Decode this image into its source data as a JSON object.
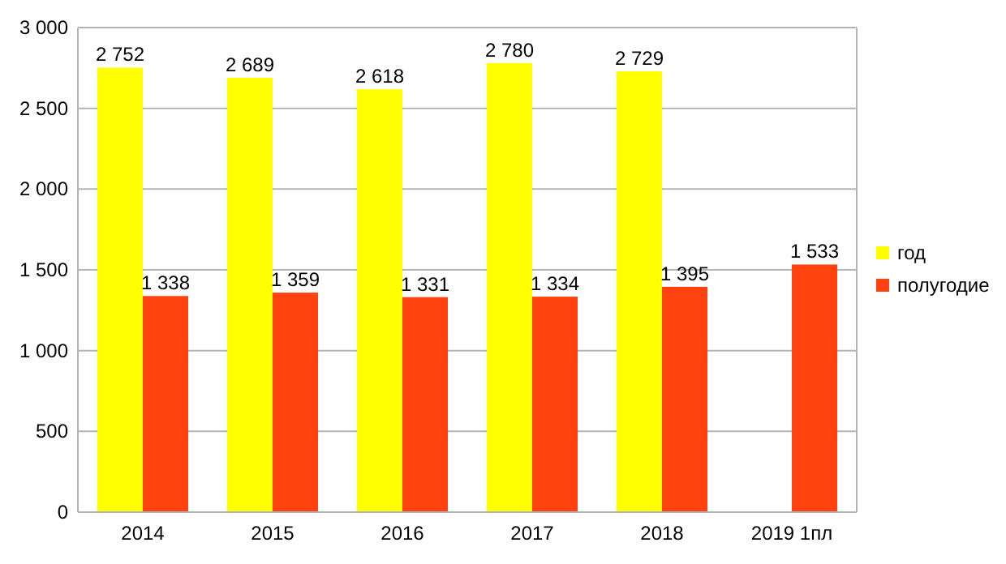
{
  "chart_data": {
    "type": "bar",
    "categories": [
      "2014",
      "2015",
      "2016",
      "2017",
      "2018",
      "2019 1пл"
    ],
    "series": [
      {
        "name": "год",
        "color": "#ffff00",
        "values": [
          2752,
          2689,
          2618,
          2780,
          2729,
          null
        ],
        "value_labels": [
          "2 752",
          "2 689",
          "2 618",
          "2 780",
          "2 729",
          null
        ]
      },
      {
        "name": "полугодие",
        "color": "#ff420e",
        "values": [
          1338,
          1359,
          1331,
          1334,
          1395,
          1533
        ],
        "value_labels": [
          "1 338",
          "1 359",
          "1 331",
          "1 334",
          "1 395",
          "1 533"
        ]
      }
    ],
    "ylim": [
      0,
      3000
    ],
    "yticks": [
      0,
      500,
      {
        "value": 1000,
        "label": "1 000"
      },
      {
        "value": 1500,
        "label": "1 500"
      },
      {
        "value": 2000,
        "label": "2 000"
      },
      {
        "value": 2500,
        "label": "2 500"
      },
      {
        "value": 3000,
        "label": "3 000"
      }
    ],
    "grid": "y",
    "legend": "right"
  }
}
